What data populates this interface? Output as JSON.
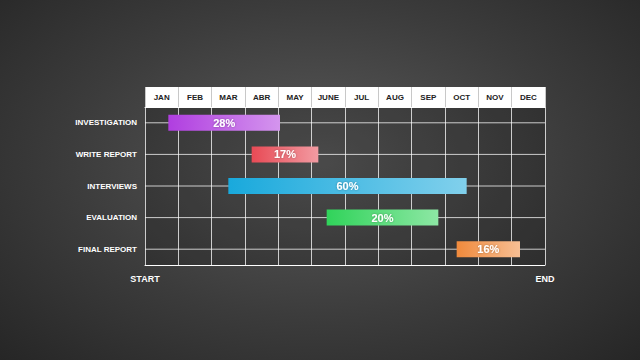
{
  "chart_data": {
    "type": "gantt",
    "categories": [
      "JAN",
      "FEB",
      "MAR",
      "ABR",
      "MAY",
      "JUNE",
      "JUL",
      "AUG",
      "SEP",
      "OCT",
      "NOV",
      "DEC"
    ],
    "tasks": [
      "INVESTIGATION",
      "WRITE REPORT",
      "INTERVIEWS",
      "EVALUATION",
      "FINAL REPORT"
    ],
    "start": [
      0.7,
      3.2,
      2.5,
      5.45,
      9.35
    ],
    "end": [
      4.05,
      5.2,
      9.65,
      8.8,
      11.25
    ],
    "progress_labels": [
      "28%",
      "17%",
      "60%",
      "20%",
      "16%"
    ],
    "colors": [
      "#b03ee0",
      "#e84a55",
      "#19a9dc",
      "#30d35a",
      "#f08a3c"
    ],
    "xlim": [
      0,
      12
    ],
    "axis_labels": {
      "start": "START",
      "end": "END"
    },
    "grid": true
  }
}
